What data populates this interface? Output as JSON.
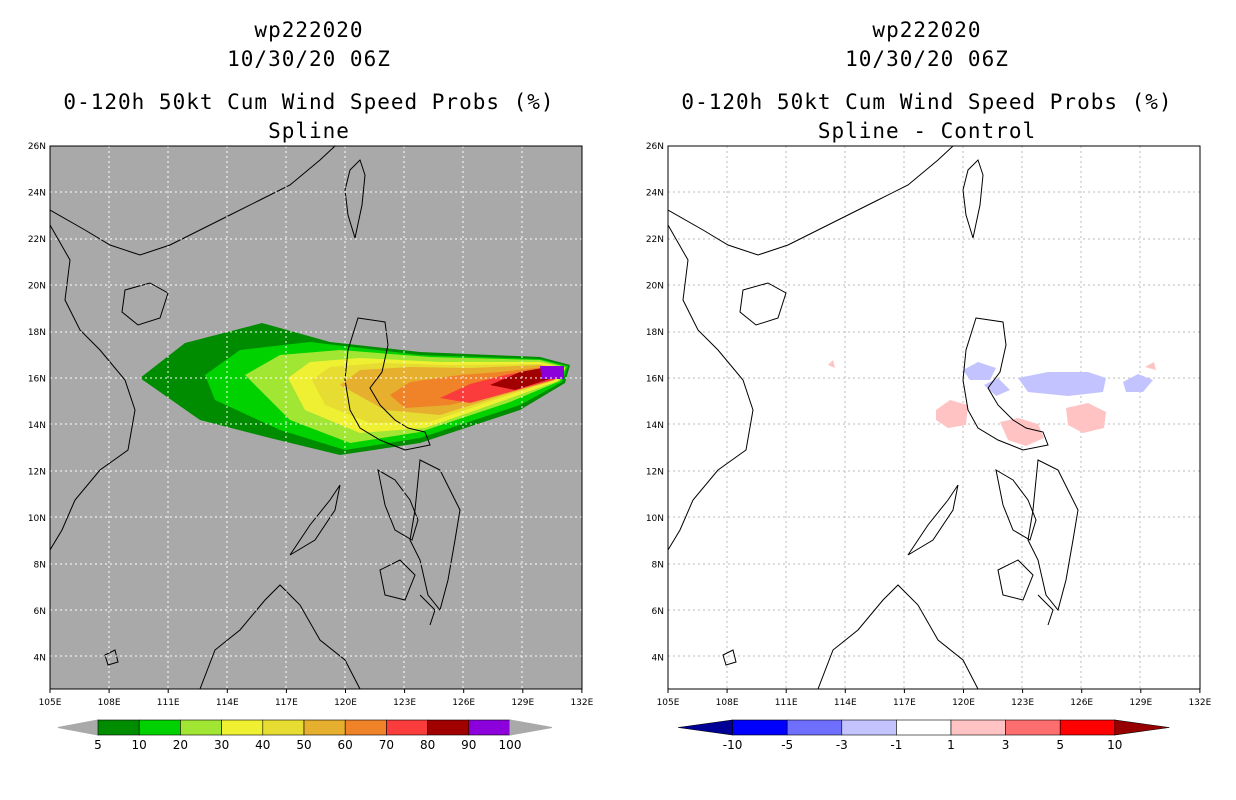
{
  "panels": [
    {
      "id": "left",
      "title_line1": "wp222020",
      "title_line2": "10/30/20 06Z",
      "title_line3": "0-120h 50kt Cum Wind Speed Probs (%)",
      "title_line4": "Spline",
      "background_color": "#a9a9a9",
      "colorbar": {
        "labels": [
          "5",
          "10",
          "20",
          "30",
          "40",
          "50",
          "60",
          "70",
          "80",
          "90",
          "100"
        ],
        "colors": [
          "#008c00",
          "#00d200",
          "#a0e632",
          "#f0f032",
          "#e6dc32",
          "#e6af2d",
          "#f08228",
          "#fa3c3c",
          "#a00000",
          "#8c00dc"
        ]
      }
    },
    {
      "id": "right",
      "title_line1": "wp222020",
      "title_line2": "10/30/20 06Z",
      "title_line3": "0-120h 50kt Cum Wind Speed Probs (%)",
      "title_line4": "Spline - Control",
      "background_color": "#ffffff",
      "colorbar": {
        "labels": [
          "-10",
          "-5",
          "-3",
          "-1",
          "1",
          "3",
          "5",
          "10"
        ],
        "colors": [
          "#000096",
          "#0000ff",
          "#6e6eff",
          "#c3c3ff",
          "#ffffff",
          "#ffc3c3",
          "#ff6e6e",
          "#ff0000",
          "#960000"
        ]
      }
    }
  ],
  "axes": {
    "x_ticks": [
      "105E",
      "108E",
      "111E",
      "114E",
      "117E",
      "120E",
      "123E",
      "126E",
      "129E",
      "132E"
    ],
    "y_ticks": [
      "26N",
      "24N",
      "22N",
      "20N",
      "18N",
      "16N",
      "14N",
      "12N",
      "10N",
      "8N",
      "6N",
      "4N"
    ]
  }
}
